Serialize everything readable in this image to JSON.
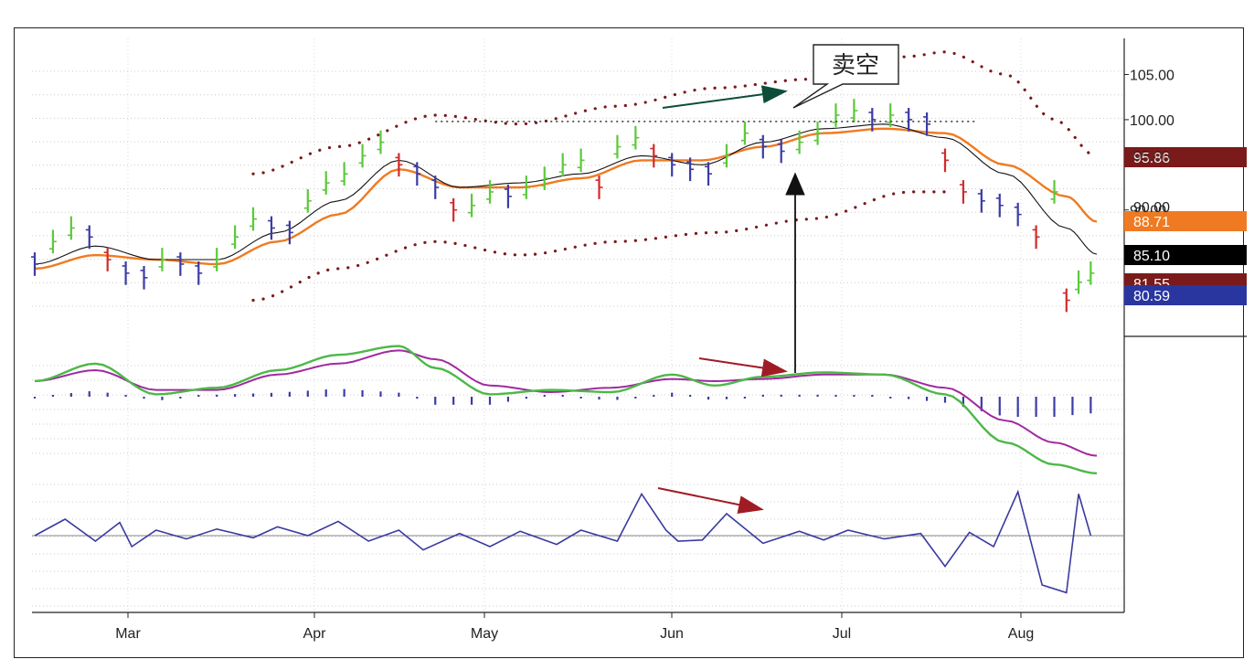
{
  "chart_data": [
    {
      "type": "ohlc",
      "panel": "price",
      "months": [
        "Mar",
        "Apr",
        "May",
        "Jun",
        "Jul",
        "Aug"
      ],
      "y_ticks": [
        90,
        100,
        105
      ],
      "y_tick_labels": [
        "90.00",
        "100.00",
        "105.00"
      ],
      "ylim": [
        76,
        109
      ],
      "grid": true,
      "annotation": "卖空",
      "resistance_level": 99.8,
      "last_values": [
        {
          "label": "95.86",
          "value": 95.86,
          "color": "#7a1a1a",
          "text_color": "#ffffff"
        },
        {
          "label": "88.71",
          "value": 88.71,
          "color": "#f07a21",
          "text_color": "#ffffff"
        },
        {
          "label": "85.10",
          "value": 85.1,
          "color": "#000000",
          "text_color": "#ffffff"
        },
        {
          "label": "81.55",
          "value": 81.55,
          "color": "#7a1a1a",
          "text_color": "#ffffff"
        },
        {
          "label": "80.59",
          "value": 80.59,
          "color": "#2a36a0",
          "text_color": "#ffffff"
        }
      ],
      "hidden_tick_labels": [
        "95.00",
        "90.00"
      ],
      "series": [
        {
          "name": "close",
          "kind": "bars",
          "x": [
            0,
            3,
            6,
            9,
            12,
            15,
            18,
            21,
            24,
            27,
            30,
            33,
            36,
            39,
            42,
            45,
            48,
            51,
            54,
            57,
            60,
            63,
            66,
            69,
            72,
            75,
            78,
            81,
            84,
            87,
            90,
            93,
            96,
            99,
            102,
            105,
            108,
            111,
            114,
            117,
            120,
            123,
            126,
            129,
            132,
            135,
            138,
            141,
            144,
            147,
            150,
            153,
            156,
            159,
            162,
            165,
            168,
            170,
            172,
            174
          ],
          "values": [
            84,
            86.5,
            88,
            87,
            84.5,
            83,
            82.5,
            84.5,
            84,
            83,
            84.5,
            87,
            89,
            88,
            87.5,
            91,
            93,
            94,
            96,
            97.5,
            95,
            94,
            92.5,
            90,
            90.5,
            92,
            91.5,
            92.5,
            93.5,
            95,
            95.5,
            92.5,
            97,
            98,
            96,
            95,
            94.5,
            94,
            96,
            98.5,
            97,
            96.5,
            97.5,
            98.5,
            100.5,
            101,
            100,
            100.5,
            100,
            99.5,
            95.5,
            92,
            91,
            90.5,
            89.5,
            87,
            92,
            80,
            82,
            83
          ]
        },
        {
          "name": "ema-fast",
          "kind": "line",
          "color": "#111111",
          "x": [
            0,
            10,
            20,
            30,
            40,
            50,
            60,
            70,
            80,
            90,
            100,
            110,
            120,
            130,
            140,
            150,
            160,
            170,
            175
          ],
          "values": [
            84,
            86,
            84.5,
            84.5,
            87.5,
            91,
            95.5,
            92.5,
            93,
            94,
            96,
            95,
            97.5,
            99,
            99.5,
            98,
            94,
            88,
            85.1
          ]
        },
        {
          "name": "ema-slow",
          "kind": "line",
          "color": "#f07a21",
          "x": [
            0,
            10,
            20,
            30,
            40,
            50,
            60,
            70,
            80,
            90,
            100,
            110,
            120,
            130,
            140,
            150,
            160,
            170,
            175
          ],
          "values": [
            83.5,
            85,
            84.5,
            84,
            86.5,
            89.5,
            94.5,
            92.5,
            92.5,
            93.5,
            95.5,
            95.5,
            97,
            98.5,
            99,
            98.5,
            95,
            91.5,
            88.7
          ]
        },
        {
          "name": "envelope-upper",
          "kind": "dots",
          "color": "#7a1a1a",
          "x": [
            36,
            50,
            66,
            80,
            96,
            112,
            128,
            144,
            150,
            160,
            168,
            175
          ],
          "values": [
            94,
            97,
            100.5,
            99.5,
            101.5,
            103.5,
            104.5,
            107,
            107.5,
            105,
            100,
            95.9
          ]
        },
        {
          "name": "envelope-lower",
          "kind": "dots",
          "color": "#7a1a1a",
          "x": [
            36,
            50,
            66,
            80,
            96,
            112,
            128,
            144,
            150
          ],
          "values": [
            80,
            83.5,
            86.5,
            85,
            86.5,
            87.5,
            89,
            92,
            92
          ]
        }
      ]
    },
    {
      "type": "line",
      "panel": "macd",
      "series": [
        {
          "name": "macd",
          "color": "#4db848",
          "x": [
            0,
            10,
            20,
            30,
            40,
            50,
            60,
            66,
            75,
            85,
            95,
            105,
            112,
            120,
            130,
            140,
            150,
            160,
            168,
            175
          ],
          "values": [
            0,
            0.8,
            -0.6,
            -0.3,
            0.5,
            1.2,
            1.6,
            0.6,
            -0.6,
            -0.4,
            -0.5,
            0.3,
            -0.2,
            0.2,
            0.4,
            0.3,
            -0.6,
            -2.8,
            -3.8,
            -4.2
          ]
        },
        {
          "name": "signal",
          "color": "#a02aa0",
          "x": [
            0,
            10,
            20,
            30,
            40,
            50,
            60,
            66,
            75,
            85,
            95,
            105,
            112,
            120,
            130,
            140,
            150,
            160,
            168,
            175
          ],
          "values": [
            0,
            0.5,
            -0.4,
            -0.4,
            0.3,
            0.8,
            1.4,
            1,
            -0.2,
            -0.5,
            -0.3,
            0.1,
            0,
            0.1,
            0.3,
            0.3,
            -0.3,
            -1.8,
            -2.8,
            -3.4
          ]
        }
      ]
    },
    {
      "type": "line",
      "panel": "momentum",
      "series": [
        {
          "name": "momentum",
          "color": "#3a3aa0",
          "x": [
            0,
            5,
            10,
            14,
            16,
            20,
            25,
            30,
            36,
            40,
            45,
            50,
            55,
            60,
            64,
            70,
            75,
            80,
            86,
            90,
            96,
            100,
            104,
            106,
            110,
            114,
            120,
            126,
            130,
            134,
            140,
            146,
            150,
            154,
            158,
            162,
            166,
            170,
            172,
            174
          ],
          "values": [
            0,
            1.5,
            -0.5,
            1.2,
            -1,
            0.5,
            -0.3,
            0.6,
            -0.2,
            0.8,
            0,
            1.3,
            -0.5,
            0.5,
            -1.3,
            0.2,
            -1,
            0.4,
            -0.8,
            0.5,
            -0.5,
            3.8,
            0.5,
            -0.5,
            -0.4,
            2,
            -0.7,
            0.4,
            -0.4,
            0.5,
            -0.3,
            0.2,
            -2.8,
            0.3,
            -1,
            4,
            -4.5,
            -5.2,
            3.8,
            0
          ]
        }
      ]
    }
  ]
}
